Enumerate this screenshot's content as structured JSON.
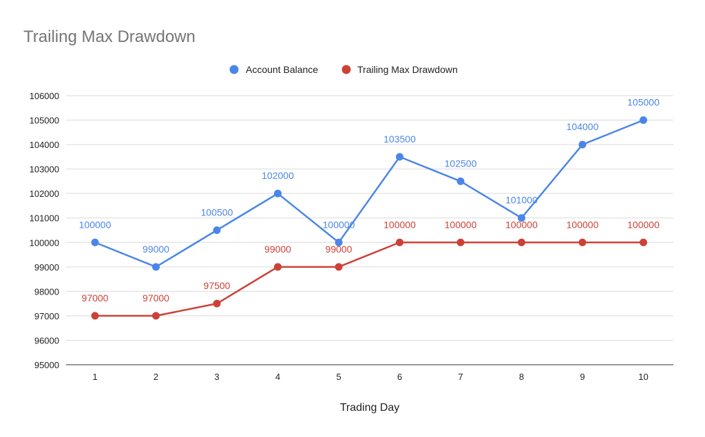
{
  "chart_data": {
    "type": "line",
    "title": "Trailing Max Drawdown",
    "xlabel": "Trading Day",
    "ylabel": "",
    "categories": [
      "1",
      "2",
      "3",
      "4",
      "5",
      "6",
      "7",
      "8",
      "9",
      "10"
    ],
    "ylim": [
      95000,
      106000
    ],
    "yticks": [
      95000,
      96000,
      97000,
      98000,
      99000,
      100000,
      101000,
      102000,
      103000,
      104000,
      105000,
      106000
    ],
    "grid": true,
    "legend_position": "top-center",
    "series": [
      {
        "name": "Account Balance",
        "color": "#4a86e8",
        "values": [
          100000,
          99000,
          100500,
          102000,
          100000,
          103500,
          102500,
          101000,
          104000,
          105000
        ]
      },
      {
        "name": "Trailing Max Drawdown",
        "color": "#cc4137",
        "values": [
          97000,
          97000,
          97500,
          99000,
          99000,
          100000,
          100000,
          100000,
          100000,
          100000
        ]
      }
    ]
  }
}
